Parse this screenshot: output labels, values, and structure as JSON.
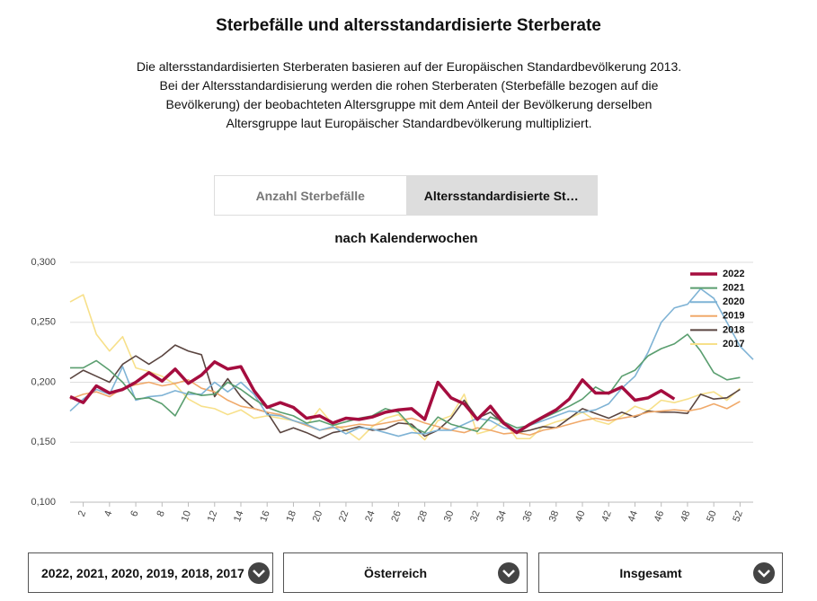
{
  "header": {
    "title": "Sterbefälle und altersstandardisierte Sterberate",
    "description": "Die altersstandardisierten Sterberaten basieren auf der Europäischen Standardbevölkerung 2013. Bei der Altersstandardisierung werden die rohen Sterberaten (Sterbefälle bezogen auf die Bevölkerung) der beobachteten Altersgruppe mit dem Anteil der Bevölkerung derselben Altersgruppe laut Europäischer Standardbevölkerung multipliziert."
  },
  "tabs": [
    "Anzahl Sterbefälle",
    "Altersstandardisierte St…"
  ],
  "dropdowns": [
    "2022, 2021, 2020, 2019, 2018, 2017",
    "Österreich",
    "Insgesamt"
  ],
  "chart_data": {
    "type": "line",
    "title": "nach Kalenderwochen",
    "x": [
      1,
      2,
      3,
      4,
      5,
      6,
      7,
      8,
      9,
      10,
      11,
      12,
      13,
      14,
      15,
      16,
      17,
      18,
      19,
      20,
      21,
      22,
      23,
      24,
      25,
      26,
      27,
      28,
      29,
      30,
      31,
      32,
      33,
      34,
      35,
      36,
      37,
      38,
      39,
      40,
      41,
      42,
      43,
      44,
      45,
      46,
      47,
      48,
      49,
      50,
      51,
      52,
      53
    ],
    "xlim": [
      1,
      53
    ],
    "xticks": [
      2,
      4,
      6,
      8,
      10,
      12,
      14,
      16,
      18,
      20,
      22,
      24,
      26,
      28,
      30,
      32,
      34,
      36,
      38,
      40,
      42,
      44,
      46,
      48,
      50,
      52
    ],
    "ylim": [
      0.1,
      0.3
    ],
    "yticks": [
      {
        "value": 0.1,
        "label": "0,100"
      },
      {
        "value": 0.15,
        "label": "0,150"
      },
      {
        "value": 0.2,
        "label": "0,200"
      },
      {
        "value": 0.25,
        "label": "0,250"
      },
      {
        "value": 0.3,
        "label": "0,300"
      }
    ],
    "grid": true,
    "legend": "upper right",
    "series": [
      {
        "name": "2022",
        "color": "#a50d3f",
        "values": [
          0.188,
          0.183,
          0.197,
          0.191,
          0.194,
          0.2,
          0.208,
          0.201,
          0.211,
          0.199,
          0.206,
          0.217,
          0.211,
          0.213,
          0.193,
          0.179,
          0.183,
          0.179,
          0.17,
          0.172,
          0.166,
          0.17,
          0.169,
          0.171,
          0.175,
          0.177,
          0.178,
          0.169,
          0.2,
          0.187,
          0.182,
          0.169,
          0.18,
          0.166,
          0.158,
          0.165,
          0.171,
          0.177,
          0.186,
          0.202,
          0.191,
          0.191,
          0.196,
          0.185,
          0.187,
          0.193,
          0.186,
          null,
          null,
          null,
          null,
          null,
          null
        ]
      },
      {
        "name": "2021",
        "color": "#5a9e6f",
        "values": [
          0.212,
          0.212,
          0.218,
          0.21,
          0.2,
          0.186,
          0.187,
          0.182,
          0.172,
          0.192,
          0.189,
          0.19,
          0.2,
          0.194,
          0.186,
          0.179,
          0.175,
          0.172,
          0.166,
          0.168,
          0.164,
          0.167,
          0.17,
          0.172,
          0.178,
          0.175,
          0.163,
          0.158,
          0.171,
          0.165,
          0.162,
          0.159,
          0.171,
          0.167,
          0.162,
          0.164,
          0.17,
          0.175,
          0.18,
          0.186,
          0.196,
          0.19,
          0.205,
          0.21,
          0.222,
          0.228,
          0.232,
          0.24,
          0.226,
          0.208,
          0.202,
          0.204,
          null
        ]
      },
      {
        "name": "2020",
        "color": "#7fb3d5",
        "values": [
          0.176,
          0.186,
          0.194,
          0.19,
          0.213,
          0.185,
          0.188,
          0.189,
          0.193,
          0.19,
          0.19,
          0.2,
          0.192,
          0.2,
          0.19,
          0.173,
          0.172,
          0.168,
          0.165,
          0.16,
          0.163,
          0.157,
          0.162,
          0.161,
          0.158,
          0.155,
          0.158,
          0.157,
          0.16,
          0.16,
          0.165,
          0.17,
          0.168,
          0.162,
          0.16,
          0.164,
          0.168,
          0.172,
          0.176,
          0.175,
          0.177,
          0.182,
          0.195,
          0.205,
          0.225,
          0.25,
          0.262,
          0.265,
          0.278,
          0.27,
          0.25,
          0.23,
          0.219
        ]
      },
      {
        "name": "2019",
        "color": "#f0a96a",
        "values": [
          0.186,
          0.19,
          0.192,
          0.188,
          0.195,
          0.198,
          0.2,
          0.197,
          0.199,
          0.202,
          0.195,
          0.192,
          0.185,
          0.18,
          0.178,
          0.175,
          0.173,
          0.168,
          0.164,
          0.16,
          0.162,
          0.163,
          0.165,
          0.164,
          0.166,
          0.168,
          0.17,
          0.166,
          0.163,
          0.16,
          0.158,
          0.162,
          0.16,
          0.157,
          0.158,
          0.156,
          0.16,
          0.162,
          0.165,
          0.168,
          0.17,
          0.168,
          0.17,
          0.172,
          0.175,
          0.176,
          0.177,
          0.176,
          0.178,
          0.182,
          0.178,
          0.184,
          null
        ]
      },
      {
        "name": "2018",
        "color": "#5a4540",
        "values": [
          0.203,
          0.21,
          0.205,
          0.2,
          0.215,
          0.222,
          0.215,
          0.222,
          0.231,
          0.226,
          0.223,
          0.188,
          0.203,
          0.188,
          0.178,
          0.175,
          0.158,
          0.162,
          0.158,
          0.153,
          0.158,
          0.16,
          0.163,
          0.16,
          0.161,
          0.166,
          0.165,
          0.155,
          0.16,
          0.17,
          0.185,
          0.17,
          0.175,
          0.165,
          0.158,
          0.16,
          0.163,
          0.162,
          0.17,
          0.178,
          0.174,
          0.17,
          0.175,
          0.171,
          0.176,
          0.175,
          0.175,
          0.174,
          0.19,
          0.186,
          0.187,
          0.194,
          null
        ]
      },
      {
        "name": "2017",
        "color": "#f7e08a",
        "values": [
          0.267,
          0.273,
          0.24,
          0.226,
          0.238,
          0.212,
          0.209,
          0.205,
          0.198,
          0.186,
          0.18,
          0.178,
          0.173,
          0.177,
          0.17,
          0.172,
          0.17,
          0.168,
          0.164,
          0.178,
          0.165,
          0.16,
          0.152,
          0.163,
          0.17,
          0.173,
          0.162,
          0.152,
          0.168,
          0.172,
          0.19,
          0.157,
          0.16,
          0.168,
          0.153,
          0.153,
          0.163,
          0.167,
          0.17,
          0.175,
          0.168,
          0.165,
          0.172,
          0.18,
          0.176,
          0.185,
          0.183,
          0.186,
          0.19,
          0.192,
          0.185,
          0.195,
          null
        ]
      }
    ]
  }
}
